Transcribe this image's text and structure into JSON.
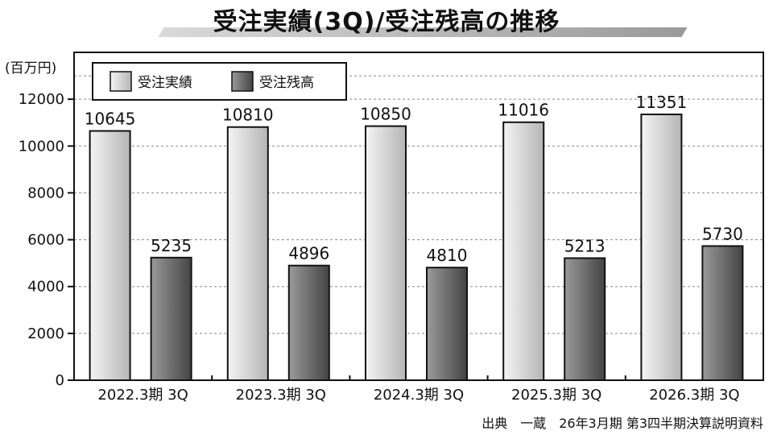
{
  "title": "受注実績(3Q)/受注残高の推移",
  "unit_label": "(百万円)",
  "source": "出典　一蔵　26年3月期 第3四半期決算説明資料",
  "colors": {
    "series_a_light": "#f4f4f4",
    "series_a_dark": "#b5b5b5",
    "series_b_light": "#9a9a9a",
    "series_b_dark": "#444444"
  },
  "chart_data": {
    "type": "bar",
    "title": "受注実績(3Q)/受注残高の推移",
    "ylabel": "(百万円)",
    "xlabel": "",
    "ylim": [
      0,
      14000
    ],
    "yticks": [
      0,
      2000,
      4000,
      6000,
      8000,
      10000,
      12000
    ],
    "grid": true,
    "legend_position": "top-left",
    "categories": [
      "2022.3期 3Q",
      "2023.3期 3Q",
      "2024.3期 3Q",
      "2025.3期 3Q",
      "2026.3期 3Q"
    ],
    "series": [
      {
        "name": "受注実績",
        "values": [
          10645,
          10810,
          10850,
          11016,
          11351
        ]
      },
      {
        "name": "受注残高",
        "values": [
          5235,
          4896,
          4810,
          5213,
          5730
        ]
      }
    ]
  }
}
